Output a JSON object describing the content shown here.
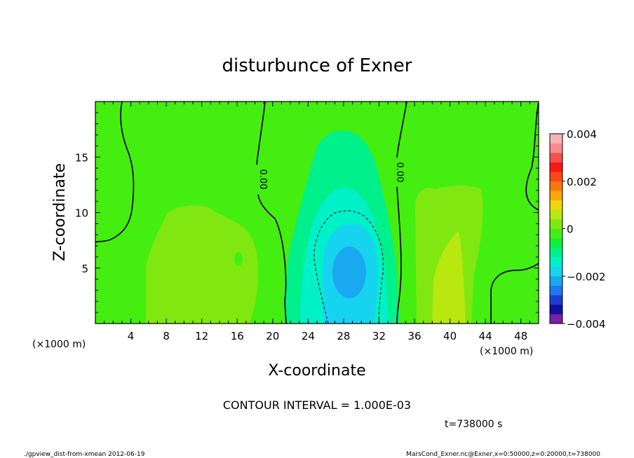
{
  "chart_data": {
    "type": "heatmap",
    "title": "disturbunce of Exner",
    "xlabel": "X-coordinate",
    "ylabel": "Z-coordinate",
    "x_unit_left": "(×1000 m)",
    "x_unit_right": "(×1000 m)",
    "xlim": [
      0,
      50
    ],
    "ylim": [
      0,
      20
    ],
    "x_ticks": [
      4,
      8,
      12,
      16,
      20,
      24,
      28,
      32,
      36,
      40,
      44,
      48
    ],
    "y_ticks": [
      5,
      10,
      15
    ],
    "colorbar": {
      "vmin": -0.004,
      "vmax": 0.004,
      "tick_values": [
        0.004,
        0.002,
        0,
        -0.002,
        -0.004
      ],
      "tick_labels": [
        "0.004",
        "0.002",
        "0",
        "−0.002",
        "−0.004"
      ],
      "colors": [
        "#7a1fa8",
        "#1010a0",
        "#1a3fd0",
        "#1e78f0",
        "#1aa8f0",
        "#16d4f0",
        "#00f0c8",
        "#00f08c",
        "#10ee40",
        "#44ee10",
        "#80e810",
        "#b8e810",
        "#ecd810",
        "#f8a808",
        "#f87808",
        "#f84818",
        "#f81818",
        "#f85050",
        "#f88c8c",
        "#f8b4b4"
      ]
    },
    "contour_interval_text": "CONTOUR INTERVAL = 1.000E-03",
    "contour_labels": [
      "0.00",
      "0.00"
    ],
    "time_text": "t=738000 s",
    "fields": [
      {
        "name": "positive region",
        "center_x": 10.5,
        "center_z": 5,
        "level": 0.0006
      },
      {
        "name": "positive region",
        "center_x": 40,
        "center_z": 5,
        "level": 0.0007
      },
      {
        "name": "negative region",
        "center_x": 28.5,
        "center_z": 6,
        "level": -0.002
      }
    ]
  },
  "footer": {
    "left": "./gpview_dist-from-xmean  2012-06-19",
    "right": "MarsCond_Exner.nc@Exner,x=0:50000,z=0:20000,t=738000"
  }
}
